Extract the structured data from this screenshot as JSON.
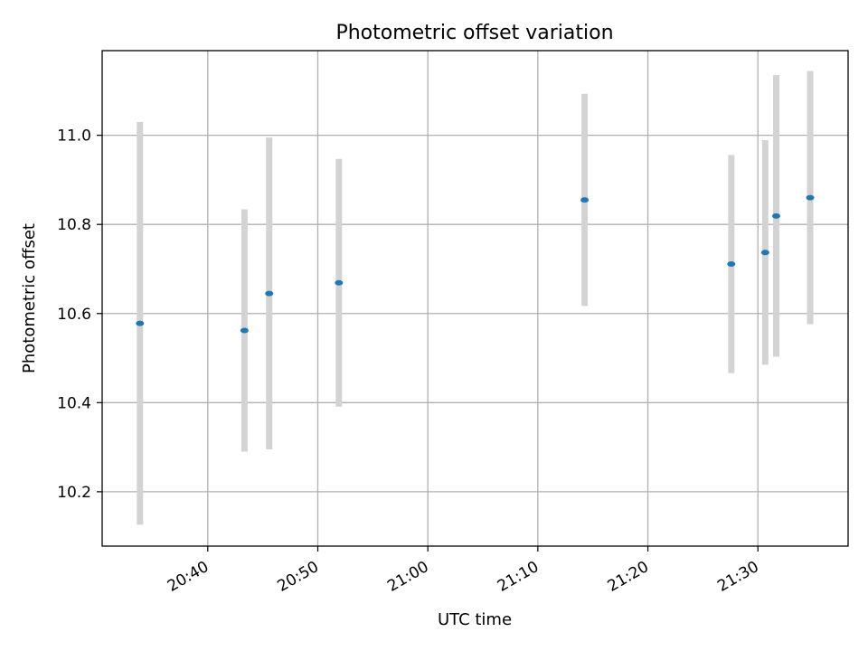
{
  "chart_data": {
    "type": "scatter",
    "title": "Photometric offset variation",
    "xlabel": "UTC time",
    "ylabel": "Photometric offset",
    "x_is_time": true,
    "xlim": [
      "20:30:24",
      "21:38:12"
    ],
    "ylim": [
      10.078,
      11.19
    ],
    "x_ticks": [
      "20:40",
      "20:50",
      "21:00",
      "21:10",
      "21:20",
      "21:30"
    ],
    "y_ticks": [
      "10.2",
      "10.4",
      "10.6",
      "10.8",
      "11.0"
    ],
    "grid": true,
    "series": [
      {
        "marker_color": "#1f77b4",
        "errorbar_color": "#d3d3d3",
        "points": [
          {
            "t": "20:33:50",
            "y": 10.578,
            "err": 0.452
          },
          {
            "t": "20:43:20",
            "y": 10.562,
            "err": 0.272
          },
          {
            "t": "20:45:35",
            "y": 10.645,
            "err": 0.35
          },
          {
            "t": "20:51:55",
            "y": 10.669,
            "err": 0.278
          },
          {
            "t": "21:14:15",
            "y": 10.855,
            "err": 0.238
          },
          {
            "t": "21:27:35",
            "y": 10.711,
            "err": 0.245
          },
          {
            "t": "21:30:40",
            "y": 10.737,
            "err": 0.252
          },
          {
            "t": "21:31:40",
            "y": 10.819,
            "err": 0.316
          },
          {
            "t": "21:34:45",
            "y": 10.86,
            "err": 0.284
          }
        ]
      }
    ]
  }
}
